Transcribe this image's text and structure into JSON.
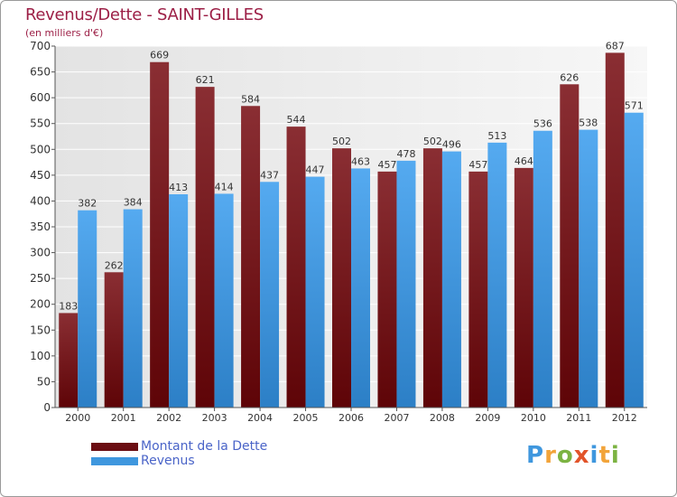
{
  "header": {
    "title": "Revenus/Dette - SAINT-GILLES",
    "subtitle": "(en milliers d'€)"
  },
  "legend": {
    "items": [
      {
        "label": "Montant de la Dette",
        "color": "#6b0d12"
      },
      {
        "label": "Revenus",
        "color": "#3f97de"
      }
    ]
  },
  "logo": {
    "text": "Proxiti",
    "letters": [
      {
        "ch": "P",
        "color": "#3f97de"
      },
      {
        "ch": "r",
        "color": "#f2a43a"
      },
      {
        "ch": "o",
        "color": "#7cb342"
      },
      {
        "ch": "x",
        "color": "#e2542a"
      },
      {
        "ch": "i",
        "color": "#3f97de"
      },
      {
        "ch": "t",
        "color": "#f2a43a"
      },
      {
        "ch": "i",
        "color": "#7cb342"
      }
    ]
  },
  "chart_data": {
    "type": "bar",
    "title": "Revenus/Dette - SAINT-GILLES",
    "subtitle": "(en milliers d'€)",
    "categories": [
      "2000",
      "2001",
      "2002",
      "2003",
      "2004",
      "2005",
      "2006",
      "2007",
      "2008",
      "2009",
      "2010",
      "2011",
      "2012"
    ],
    "series": [
      {
        "name": "Montant de la Dette",
        "color": "#6b0d12",
        "values": [
          183,
          262,
          669,
          621,
          584,
          544,
          502,
          457,
          502,
          457,
          464,
          626,
          687
        ]
      },
      {
        "name": "Revenus",
        "color": "#3f97de",
        "values": [
          382,
          384,
          413,
          414,
          437,
          447,
          463,
          478,
          496,
          513,
          536,
          538,
          571
        ]
      }
    ],
    "ylim": [
      0,
      700
    ],
    "yticks": [
      0,
      50,
      100,
      150,
      200,
      250,
      300,
      350,
      400,
      450,
      500,
      550,
      600,
      650,
      700
    ],
    "grid": true,
    "legend_position": "bottom-left"
  }
}
